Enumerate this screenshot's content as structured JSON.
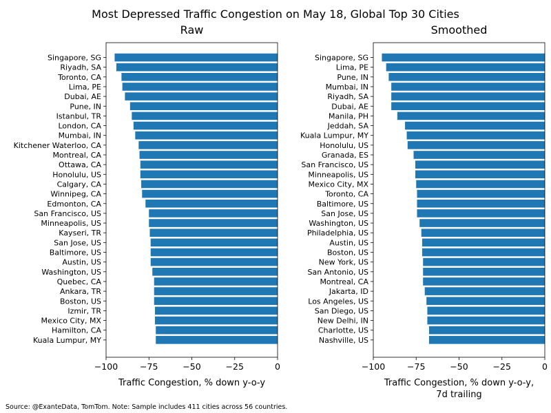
{
  "figure": {
    "title": "Most Depressed Traffic Congestion on May 18, Global Top 30 Cities",
    "source": "Source: @ExanteData, TomTom.   Note: Sample includes 411 cities across 56 countries."
  },
  "colors": {
    "bar": "#1f77b4",
    "axis": "#000000",
    "background": "#ffffff"
  },
  "chart_data": [
    {
      "type": "bar",
      "orientation": "horizontal",
      "title": "Raw",
      "xlabel": "Traffic Congestion, % down y-o-y",
      "xlim": [
        -100,
        0
      ],
      "xticks": [
        -100,
        -75,
        -50,
        -25,
        0
      ],
      "xtick_labels": [
        "−100",
        "−75",
        "−50",
        "−25",
        "0"
      ],
      "categories": [
        "Singapore, SG",
        "Riyadh, SA",
        "Toronto, CA",
        "Lima, PE",
        "Dubai, AE",
        "Pune, IN",
        "Istanbul, TR",
        "London, CA",
        "Mumbai, IN",
        "Kitchener Waterloo, CA",
        "Montreal, CA",
        "Ottawa, CA",
        "Honolulu, US",
        "Calgary, CA",
        "Winnipeg, CA",
        "Edmonton, CA",
        "San Francisco, US",
        "Minneapolis, US",
        "Kayseri, TR",
        "San Jose, US",
        "Baltimore, US",
        "Austin, US",
        "Washington, US",
        "Quebec, CA",
        "Ankara, TR",
        "Boston, US",
        "Izmir, TR",
        "Mexico City, MX",
        "Hamilton, CA",
        "Kuala Lumpur, MY"
      ],
      "values": [
        -95,
        -94,
        -91,
        -90.5,
        -89,
        -86,
        -85,
        -84,
        -83,
        -81,
        -80.5,
        -80,
        -80,
        -79.5,
        -79,
        -77,
        -75,
        -75,
        -74.5,
        -74,
        -74,
        -74,
        -73,
        -72,
        -72,
        -72,
        -71.5,
        -71.5,
        -71,
        -71
      ]
    },
    {
      "type": "bar",
      "orientation": "horizontal",
      "title": "Smoothed",
      "xlabel": "Traffic Congestion, % down y-o-y,\n7d trailing",
      "xlabel_lines": [
        "Traffic Congestion, % down y-o-y,",
        "7d trailing"
      ],
      "xlim": [
        -100,
        0
      ],
      "xticks": [
        -100,
        -75,
        -50,
        -25,
        0
      ],
      "xtick_labels": [
        "−100",
        "−75",
        "−50",
        "−25",
        "0"
      ],
      "categories": [
        "Singapore, SG",
        "Lima, PE",
        "Pune, IN",
        "Mumbai, IN",
        "Riyadh, SA",
        "Dubai, AE",
        "Manila, PH",
        "Jeddah, SA",
        "Kuala Lumpur, MY",
        "Honolulu, US",
        "Granada, ES",
        "San Francisco, US",
        "Minneapolis, US",
        "Mexico City, MX",
        "Toronto, CA",
        "Baltimore, US",
        "San Jose, US",
        "Washington, US",
        "Philadelphia, US",
        "Austin, US",
        "Boston, US",
        "New York, US",
        "San Antonio, US",
        "Montreal, CA",
        "Jakarta, ID",
        "Los Angeles, US",
        "San Diego, US",
        "New Delhi, IN",
        "Charlotte, US",
        "Nashville, US"
      ],
      "values": [
        -95,
        -92.5,
        -91,
        -89.5,
        -89.5,
        -89.5,
        -86,
        -81.5,
        -80.5,
        -80,
        -76.5,
        -75.5,
        -75.5,
        -75,
        -74.5,
        -74.5,
        -74.5,
        -73,
        -72,
        -71.5,
        -71.5,
        -71,
        -71,
        -71,
        -70,
        -69,
        -68.5,
        -68.5,
        -67.5,
        -67.5
      ]
    }
  ]
}
